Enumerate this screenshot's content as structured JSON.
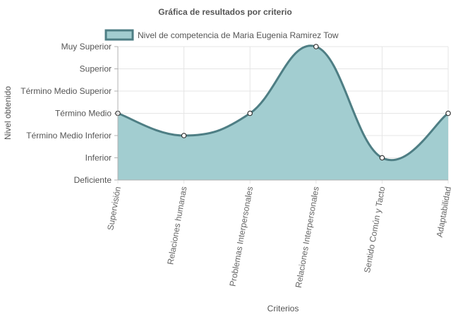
{
  "chart_data": {
    "type": "area",
    "title": "Gráfica de resultados por criterio",
    "xlabel": "Criterios",
    "ylabel": "Nivel obtenido",
    "levels": [
      "Deficiente",
      "Inferior",
      "Término Medio Inferior",
      "Término Medio",
      "Término Medio Superior",
      "Superior",
      "Muy Superior"
    ],
    "categories": [
      "Supervisión",
      "Relaciones humanas",
      "Problemas Interpersonales",
      "Relaciones Interpersonales",
      "Sentido Común y Tacto",
      "Adaptabilidad"
    ],
    "series": [
      {
        "name": "Nivel de competencia de Maria Eugenia Ramirez Tow",
        "values": [
          3,
          2,
          3,
          6,
          1,
          3
        ],
        "fill": "#a2cdd0",
        "stroke": "#4e7e84"
      }
    ],
    "ylim": [
      0,
      6
    ],
    "grid": true,
    "legend": "top-center"
  }
}
